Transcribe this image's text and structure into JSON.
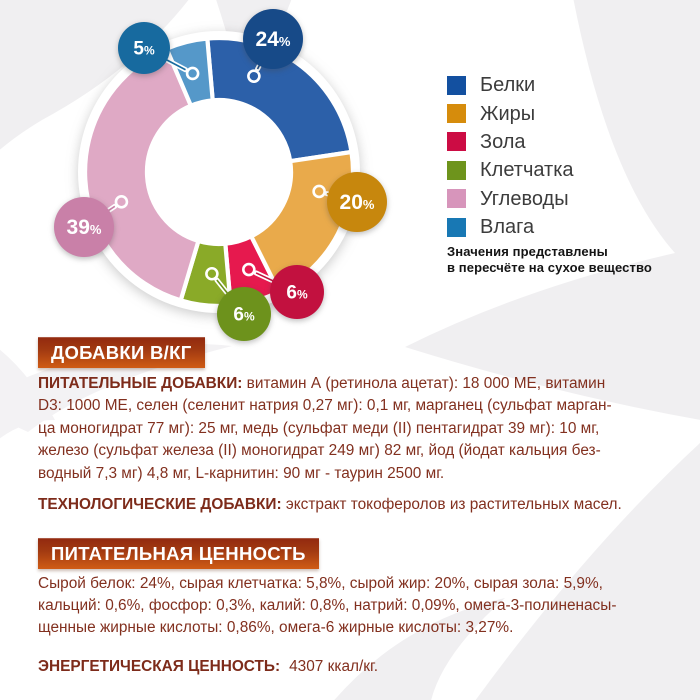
{
  "chart_data": {
    "type": "pie",
    "donut": true,
    "title": "",
    "unit": "%",
    "categories": [
      "Белки",
      "Жиры",
      "Зола",
      "Клетчатка",
      "Углеводы",
      "Влага"
    ],
    "values": [
      24,
      20,
      6,
      6,
      39,
      5
    ],
    "value_labels": [
      "24%",
      "20%",
      "6%",
      "6%",
      "39%",
      "5%"
    ],
    "segment_colors": [
      "#2c60a9",
      "#e9aa4b",
      "#e6194e",
      "#8aaa28",
      "#dfa9c5",
      "#5598c9"
    ],
    "bubble_colors": [
      "#174a88",
      "#c7870d",
      "#c2113f",
      "#6d921c",
      "#c980a8",
      "#176a9f"
    ],
    "legend_colors": [
      "#1350a0",
      "#d68c0c",
      "#cc0c44",
      "#6e941c",
      "#d795bb",
      "#1878b4"
    ],
    "legend_position": "right",
    "note": "Значения представлены в пересчёте на сухое вещество"
  },
  "legend": {
    "items": [
      {
        "label": "Белки",
        "color": "#1350a0"
      },
      {
        "label": "Жиры",
        "color": "#d68c0c"
      },
      {
        "label": "Зола",
        "color": "#cc0c44"
      },
      {
        "label": "Клетчатка",
        "color": "#6e941c"
      },
      {
        "label": "Углеводы",
        "color": "#d795bb"
      },
      {
        "label": "Влага",
        "color": "#1878b4"
      }
    ],
    "note_lines": [
      "Значения представлены",
      "в пересчёте на сухое вещество"
    ]
  },
  "sections": {
    "additives_section": {
      "ribbon_label": "ДОБАВКИ В/КГ",
      "nutritional_additives": {
        "label": "ПИТАТЕЛЬНЫЕ ДОБАВКИ:",
        "lines": [
          "витамин А (ретинола ацетат): 18 000 МЕ, витамин",
          "D3: 1000 МЕ, селен (селенит натрия 0,27 мг): 0,1 мг, марганец (сульфат марган-",
          "ца моногидрат 77 мг): 25 мг, медь (сульфат меди (II) пентагидрат 39 мг): 10 мг,",
          "железо (сульфат железа (II) моногидрат 249 мг) 82 мг, йод (йодат кальция без-",
          "водный 7,3 мг) 4,8 мг, L-карнитин: 90 мг - таурин 2500 мг."
        ]
      },
      "technological_additives": {
        "label": "ТЕХНОЛОГИЧЕСКИЕ ДОБАВКИ:",
        "text": "экстракт токоферолов из растительных масел."
      }
    },
    "nutrition_section": {
      "ribbon_label": "ПИТАТЕЛЬНАЯ ЦЕННОСТЬ",
      "lines": [
        "Сырой белок: 24%, сырая клетчатка: 5,8%, сырой жир: 20%, сырая зола: 5,9%,",
        "кальций: 0,6%, фосфор: 0,3%, калий: 0,8%, натрий: 0,09%, омега-3-полиненасы-",
        "щенные жирные кислоты: 0,86%, омега-6 жирные кислоты: 3,27%."
      ]
    },
    "energy_section": {
      "label": "ЭНЕРГЕТИЧЕСКАЯ ЦЕННОСТЬ:",
      "value": "4307 ккал/кг."
    }
  }
}
